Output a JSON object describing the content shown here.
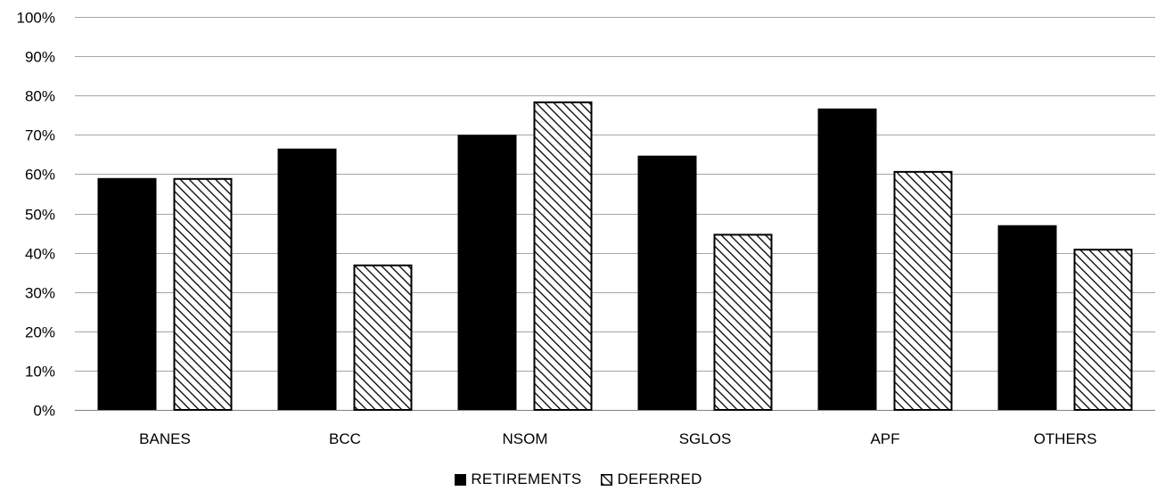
{
  "chart_data": {
    "type": "bar",
    "title": "",
    "xlabel": "",
    "ylabel": "",
    "categories": [
      "BANES",
      "BCC",
      "NSOM",
      "SGLOS",
      "APF",
      "OTHERS"
    ],
    "series": [
      {
        "name": "RETIREMENTS",
        "values": [
          59,
          66.5,
          70,
          64.7,
          76.7,
          47
        ],
        "fill": "solid"
      },
      {
        "name": "DEFERRED",
        "values": [
          59,
          37,
          78.5,
          44.8,
          60.8,
          41
        ],
        "fill": "hatched"
      }
    ],
    "ylim": [
      0,
      100
    ],
    "yticks": [
      "0%",
      "10%",
      "20%",
      "30%",
      "40%",
      "50%",
      "60%",
      "70%",
      "80%",
      "90%",
      "100%"
    ],
    "grid": true,
    "legend": "bottom-center"
  },
  "colors": {
    "bar": "#000000",
    "gridline": "#a6a6a6",
    "axis": "#7f7f7f",
    "background": "#ffffff"
  }
}
